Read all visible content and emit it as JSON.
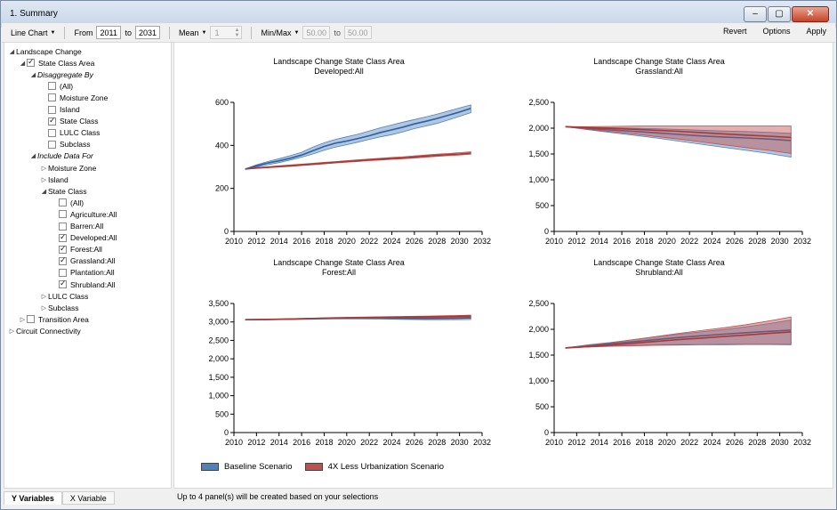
{
  "window": {
    "title": "1. Summary",
    "minimize": "‒",
    "maximize": "▢",
    "close": "✕"
  },
  "toolbar": {
    "chart_type": "Line Chart",
    "from_label": "From",
    "from_value": "2011",
    "to_label": "to",
    "to_value": "2031",
    "stat": "Mean",
    "stat_value": "1",
    "minmax": "Min/Max",
    "min_value": "50.00",
    "to2_label": "to",
    "max_value": "50.00",
    "revert": "Revert",
    "options": "Options",
    "apply": "Apply"
  },
  "tree": [
    {
      "label": "Landscape Change",
      "level": 0,
      "expander": "▲",
      "checkbox": null,
      "italic": false
    },
    {
      "label": "State Class Area",
      "level": 1,
      "expander": "▲",
      "checkbox": true,
      "italic": false
    },
    {
      "label": "Disaggregate By",
      "level": 2,
      "expander": "▲",
      "checkbox": null,
      "italic": true
    },
    {
      "label": "(All)",
      "level": 3,
      "expander": "",
      "checkbox": false,
      "italic": false
    },
    {
      "label": "Moisture Zone",
      "level": 3,
      "expander": "",
      "checkbox": false,
      "italic": false
    },
    {
      "label": "Island",
      "level": 3,
      "expander": "",
      "checkbox": false,
      "italic": false
    },
    {
      "label": "State Class",
      "level": 3,
      "expander": "",
      "checkbox": true,
      "italic": false
    },
    {
      "label": "LULC Class",
      "level": 3,
      "expander": "",
      "checkbox": false,
      "italic": false
    },
    {
      "label": "Subclass",
      "level": 3,
      "expander": "",
      "checkbox": false,
      "italic": false
    },
    {
      "label": "Include Data For",
      "level": 2,
      "expander": "▲",
      "checkbox": null,
      "italic": true
    },
    {
      "label": "Moisture Zone",
      "level": 3,
      "expander": "▷",
      "checkbox": null,
      "italic": false
    },
    {
      "label": "Island",
      "level": 3,
      "expander": "▷",
      "checkbox": null,
      "italic": false
    },
    {
      "label": "State Class",
      "level": 3,
      "expander": "▲",
      "checkbox": null,
      "italic": false
    },
    {
      "label": "(All)",
      "level": 4,
      "expander": "",
      "checkbox": false,
      "italic": false
    },
    {
      "label": "Agriculture:All",
      "level": 4,
      "expander": "",
      "checkbox": false,
      "italic": false
    },
    {
      "label": "Barren:All",
      "level": 4,
      "expander": "",
      "checkbox": false,
      "italic": false
    },
    {
      "label": "Developed:All",
      "level": 4,
      "expander": "",
      "checkbox": true,
      "italic": false
    },
    {
      "label": "Forest:All",
      "level": 4,
      "expander": "",
      "checkbox": true,
      "italic": false
    },
    {
      "label": "Grassland:All",
      "level": 4,
      "expander": "",
      "checkbox": true,
      "italic": false
    },
    {
      "label": "Plantation:All",
      "level": 4,
      "expander": "",
      "checkbox": false,
      "italic": false
    },
    {
      "label": "Shrubland:All",
      "level": 4,
      "expander": "",
      "checkbox": true,
      "italic": false
    },
    {
      "label": "LULC Class",
      "level": 3,
      "expander": "▷",
      "checkbox": null,
      "italic": false
    },
    {
      "label": "Subclass",
      "level": 3,
      "expander": "▷",
      "checkbox": null,
      "italic": false
    },
    {
      "label": "Transition Area",
      "level": 1,
      "expander": "▷",
      "checkbox": false,
      "italic": false
    },
    {
      "label": "Circuit Connectivity",
      "level": 0,
      "expander": "▷",
      "checkbox": null,
      "italic": false
    }
  ],
  "bottom_tabs": [
    "Y Variables",
    "X Variable"
  ],
  "status": "Up to 4 panel(s) will be created based on your selections",
  "legend": [
    {
      "name": "Baseline Scenario",
      "color": "#4f81bd"
    },
    {
      "name": "4X Less Urbanization Scenario",
      "color": "#c0504d"
    }
  ],
  "chart_data": [
    {
      "type": "area",
      "title": "Landscape Change State Class Area",
      "subtitle": "Developed:All",
      "x_ticks": [
        "2010",
        "2012",
        "2014",
        "2016",
        "2018",
        "2020",
        "2022",
        "2024",
        "2026",
        "2028",
        "2030",
        "2032"
      ],
      "xlim": [
        2010,
        2032
      ],
      "y_ticks": [
        "0",
        "200",
        "400",
        "600"
      ],
      "ylim": [
        0,
        600
      ],
      "x": [
        2011,
        2012,
        2013,
        2014,
        2015,
        2016,
        2017,
        2018,
        2019,
        2020,
        2021,
        2022,
        2023,
        2024,
        2025,
        2026,
        2027,
        2028,
        2029,
        2030,
        2031
      ],
      "series": [
        {
          "name": "Baseline Scenario",
          "mean": [
            290,
            305,
            318,
            328,
            340,
            355,
            375,
            395,
            410,
            420,
            432,
            445,
            460,
            472,
            485,
            500,
            512,
            525,
            540,
            555,
            572
          ],
          "min": [
            290,
            300,
            310,
            320,
            332,
            345,
            360,
            378,
            392,
            403,
            415,
            428,
            440,
            450,
            463,
            478,
            490,
            502,
            518,
            535,
            552
          ],
          "max": [
            290,
            310,
            325,
            338,
            352,
            368,
            392,
            412,
            428,
            440,
            452,
            467,
            482,
            495,
            508,
            520,
            532,
            545,
            560,
            574,
            588
          ]
        },
        {
          "name": "4X Less Urbanization Scenario",
          "mean": [
            290,
            295,
            298,
            302,
            305,
            309,
            313,
            317,
            321,
            325,
            329,
            333,
            336,
            339,
            342,
            346,
            350,
            354,
            357,
            360,
            364
          ],
          "min": [
            290,
            293,
            296,
            299,
            302,
            306,
            310,
            314,
            318,
            322,
            325,
            329,
            332,
            335,
            338,
            341,
            345,
            349,
            352,
            355,
            359
          ],
          "max": [
            290,
            297,
            301,
            305,
            309,
            313,
            317,
            321,
            325,
            329,
            333,
            337,
            340,
            344,
            347,
            351,
            355,
            359,
            362,
            366,
            370
          ]
        }
      ]
    },
    {
      "type": "area",
      "title": "Landscape Change State Class Area",
      "subtitle": "Grassland:All",
      "x_ticks": [
        "2010",
        "2012",
        "2014",
        "2016",
        "2018",
        "2020",
        "2022",
        "2024",
        "2026",
        "2028",
        "2030",
        "2032"
      ],
      "xlim": [
        2010,
        2032
      ],
      "y_ticks": [
        "0",
        "500",
        "1,000",
        "1,500",
        "2,000",
        "2,500"
      ],
      "ylim": [
        0,
        2500
      ],
      "x": [
        2011,
        2013,
        2015,
        2017,
        2019,
        2021,
        2023,
        2025,
        2027,
        2029,
        2031
      ],
      "series": [
        {
          "name": "Baseline Scenario",
          "mean": [
            2030,
            1995,
            1965,
            1940,
            1910,
            1880,
            1850,
            1830,
            1810,
            1790,
            1760
          ],
          "min": [
            2030,
            1970,
            1915,
            1865,
            1810,
            1750,
            1690,
            1630,
            1570,
            1510,
            1440
          ],
          "max": [
            2030,
            2015,
            2010,
            2000,
            1990,
            1975,
            1960,
            1945,
            1935,
            1920,
            1900
          ]
        },
        {
          "name": "4X Less Urbanization Scenario",
          "mean": [
            2030,
            2010,
            1995,
            1980,
            1960,
            1940,
            1915,
            1890,
            1865,
            1845,
            1820
          ],
          "min": [
            2030,
            1980,
            1935,
            1890,
            1840,
            1790,
            1735,
            1680,
            1625,
            1570,
            1510
          ],
          "max": [
            2030,
            2030,
            2035,
            2040,
            2045,
            2045,
            2045,
            2045,
            2045,
            2045,
            2040
          ]
        }
      ]
    },
    {
      "type": "area",
      "title": "Landscape Change State Class Area",
      "subtitle": "Forest:All",
      "x_ticks": [
        "2010",
        "2012",
        "2014",
        "2016",
        "2018",
        "2020",
        "2022",
        "2024",
        "2026",
        "2028",
        "2030",
        "2032"
      ],
      "xlim": [
        2010,
        2032
      ],
      "y_ticks": [
        "0",
        "500",
        "1,000",
        "1,500",
        "2,000",
        "2,500",
        "3,000",
        "3,500"
      ],
      "ylim": [
        0,
        3500
      ],
      "x": [
        2011,
        2013,
        2015,
        2017,
        2019,
        2021,
        2023,
        2025,
        2027,
        2029,
        2031
      ],
      "series": [
        {
          "name": "Baseline Scenario",
          "mean": [
            3060,
            3065,
            3075,
            3090,
            3100,
            3105,
            3105,
            3100,
            3095,
            3100,
            3110
          ],
          "min": [
            3060,
            3060,
            3065,
            3075,
            3085,
            3085,
            3080,
            3070,
            3060,
            3060,
            3065
          ],
          "max": [
            3060,
            3070,
            3085,
            3100,
            3115,
            3120,
            3125,
            3125,
            3125,
            3130,
            3140
          ]
        },
        {
          "name": "4X Less Urbanization Scenario",
          "mean": [
            3060,
            3070,
            3080,
            3095,
            3105,
            3115,
            3125,
            3130,
            3140,
            3150,
            3160
          ],
          "min": [
            3060,
            3065,
            3075,
            3085,
            3095,
            3100,
            3110,
            3115,
            3120,
            3125,
            3135
          ],
          "max": [
            3060,
            3075,
            3090,
            3105,
            3120,
            3130,
            3140,
            3150,
            3160,
            3170,
            3185
          ]
        }
      ]
    },
    {
      "type": "area",
      "title": "Landscape Change State Class Area",
      "subtitle": "Shrubland:All",
      "x_ticks": [
        "2010",
        "2012",
        "2014",
        "2016",
        "2018",
        "2020",
        "2022",
        "2024",
        "2026",
        "2028",
        "2030",
        "2032"
      ],
      "xlim": [
        2010,
        2032
      ],
      "y_ticks": [
        "0",
        "500",
        "1,000",
        "1,500",
        "2,000",
        "2,500"
      ],
      "ylim": [
        0,
        2500
      ],
      "x": [
        2011,
        2013,
        2015,
        2017,
        2019,
        2021,
        2023,
        2025,
        2027,
        2029,
        2031
      ],
      "series": [
        {
          "name": "Baseline Scenario",
          "mean": [
            1640,
            1680,
            1720,
            1760,
            1800,
            1840,
            1875,
            1905,
            1935,
            1960,
            1985
          ],
          "min": [
            1640,
            1660,
            1680,
            1690,
            1700,
            1705,
            1705,
            1710,
            1710,
            1710,
            1710
          ],
          "max": [
            1640,
            1700,
            1745,
            1800,
            1855,
            1905,
            1950,
            1995,
            2050,
            2110,
            2180
          ]
        },
        {
          "name": "4X Less Urbanization Scenario",
          "mean": [
            1640,
            1665,
            1695,
            1730,
            1765,
            1800,
            1830,
            1860,
            1890,
            1920,
            1950
          ],
          "min": [
            1640,
            1655,
            1670,
            1680,
            1690,
            1695,
            1700,
            1700,
            1705,
            1705,
            1700
          ],
          "max": [
            1640,
            1690,
            1740,
            1800,
            1860,
            1920,
            1975,
            2030,
            2090,
            2160,
            2240
          ]
        }
      ]
    }
  ]
}
